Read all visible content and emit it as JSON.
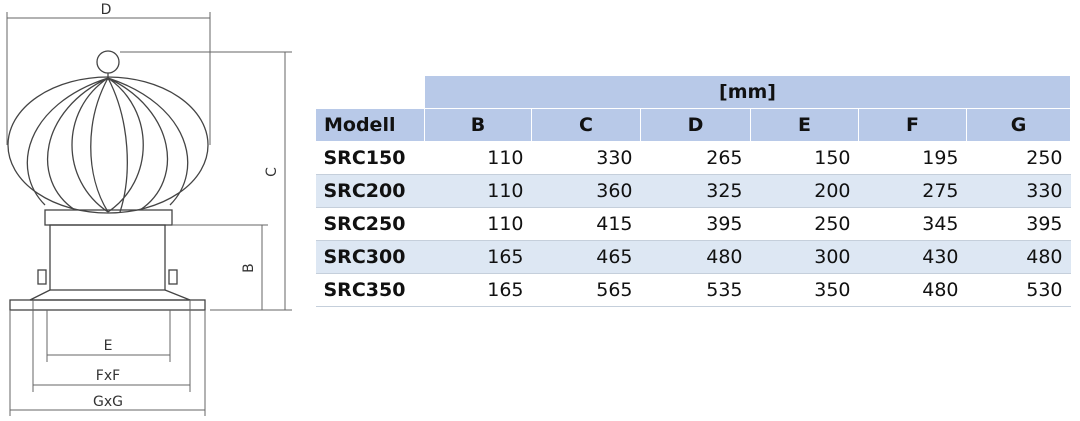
{
  "diagram": {
    "labels": {
      "d": "D",
      "c": "C",
      "b": "B",
      "e": "E",
      "f": "FxF",
      "g": "GxG"
    }
  },
  "table": {
    "unit": "[mm]",
    "columns": [
      "Modell",
      "B",
      "C",
      "D",
      "E",
      "F",
      "G"
    ],
    "rows": [
      [
        "SRC150",
        110,
        330,
        265,
        150,
        195,
        250
      ],
      [
        "SRC200",
        110,
        360,
        325,
        200,
        275,
        330
      ],
      [
        "SRC250",
        110,
        415,
        395,
        250,
        345,
        395
      ],
      [
        "SRC300",
        165,
        465,
        480,
        300,
        430,
        480
      ],
      [
        "SRC350",
        165,
        565,
        535,
        350,
        480,
        530
      ]
    ]
  }
}
